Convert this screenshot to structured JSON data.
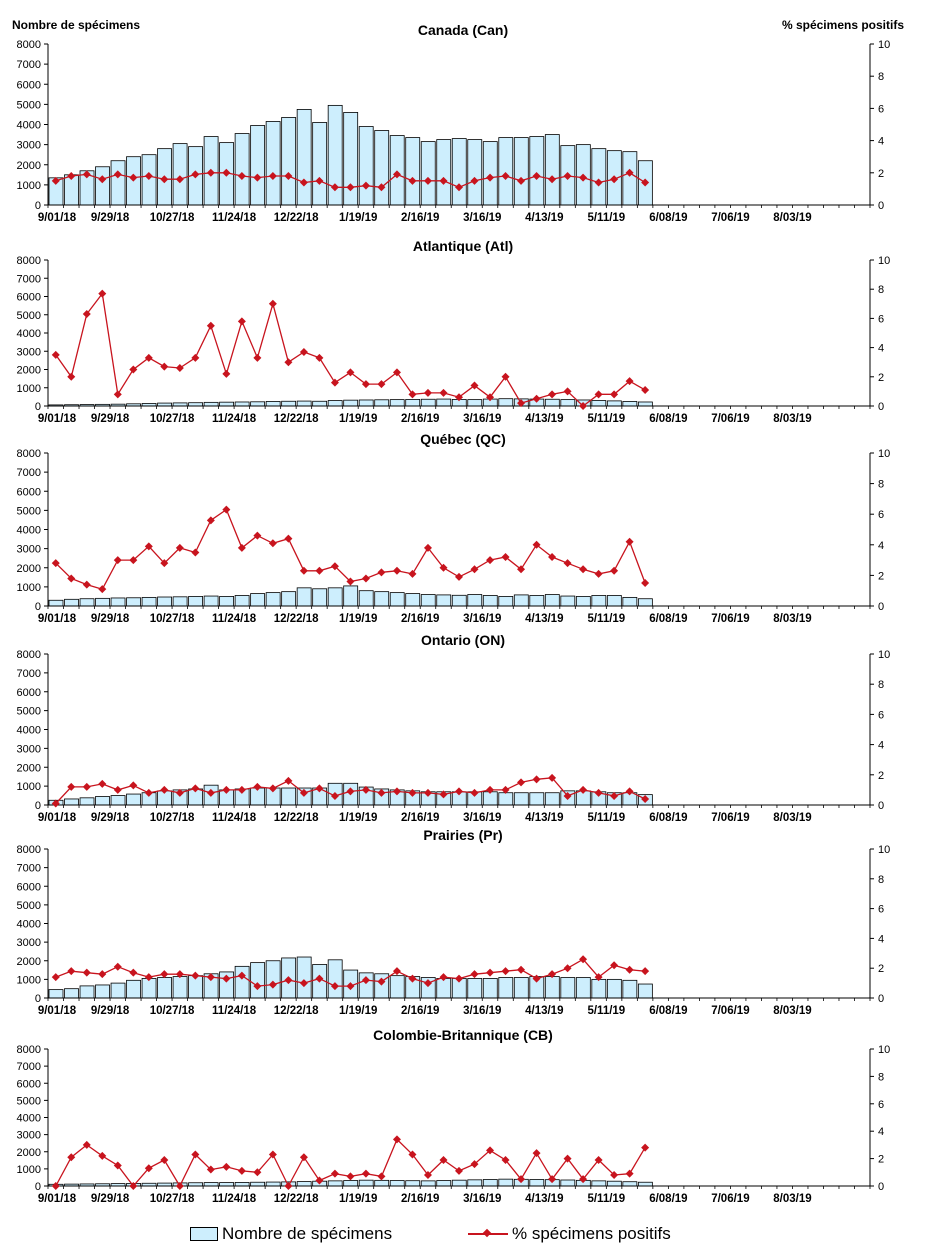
{
  "header": {
    "left_title": "Nombre de spécimens",
    "right_title": "% spécimens positifs"
  },
  "legend": {
    "bar_label": "Nombre de spécimens",
    "line_label": "% spécimens positifs"
  },
  "colors": {
    "bar_fill": "#cdeefd",
    "bar_stroke": "#000000",
    "line": "#c8141e",
    "marker": "#c8141e"
  },
  "chart_data": [
    {
      "type": "bar+line",
      "title": "Canada (Can)",
      "ylim_left": [
        0,
        8000
      ],
      "ylim_right": [
        0,
        10
      ],
      "left_ticks": [
        0,
        1000,
        2000,
        3000,
        4000,
        5000,
        6000,
        7000,
        8000
      ],
      "right_ticks": [
        0,
        2,
        4,
        6,
        8,
        10
      ],
      "x_tick_labels": [
        "9/01/18",
        "9/29/18",
        "10/27/18",
        "11/24/18",
        "12/22/18",
        "1/19/19",
        "2/16/19",
        "3/16/19",
        "4/13/19",
        "5/11/19",
        "6/08/19",
        "7/06/19",
        "8/03/19"
      ],
      "weeks_total": 53,
      "series": [
        {
          "name": "Nombre de spécimens",
          "kind": "bar",
          "values": [
            1350,
            1500,
            1700,
            1900,
            2200,
            2400,
            2500,
            2800,
            3050,
            2900,
            3400,
            3100,
            3550,
            3950,
            4150,
            4350,
            4750,
            4100,
            4950,
            4600,
            3900,
            3700,
            3450,
            3350,
            3150,
            3250,
            3300,
            3250,
            3150,
            3350,
            3350,
            3400,
            3500,
            2950,
            3000,
            2800,
            2700,
            2650,
            2200
          ]
        },
        {
          "name": "% spécimens positifs",
          "kind": "line",
          "values": [
            1.5,
            1.8,
            1.9,
            1.6,
            1.9,
            1.7,
            1.8,
            1.6,
            1.6,
            1.9,
            2.0,
            2.0,
            1.8,
            1.7,
            1.8,
            1.8,
            1.4,
            1.5,
            1.1,
            1.1,
            1.2,
            1.1,
            1.9,
            1.5,
            1.5,
            1.5,
            1.1,
            1.5,
            1.7,
            1.8,
            1.5,
            1.8,
            1.6,
            1.8,
            1.7,
            1.4,
            1.6,
            2.0,
            1.4
          ]
        }
      ]
    },
    {
      "type": "bar+line",
      "title": "Atlantique (Atl)",
      "ylim_left": [
        0,
        8000
      ],
      "ylim_right": [
        0,
        10
      ],
      "left_ticks": [
        0,
        1000,
        2000,
        3000,
        4000,
        5000,
        6000,
        7000,
        8000
      ],
      "right_ticks": [
        0,
        2,
        4,
        6,
        8,
        10
      ],
      "x_tick_labels": [
        "9/01/18",
        "9/29/18",
        "10/27/18",
        "11/24/18",
        "12/22/18",
        "1/19/19",
        "2/16/19",
        "3/16/19",
        "4/13/19",
        "5/11/19",
        "6/08/19",
        "7/06/19",
        "8/03/19"
      ],
      "weeks_total": 53,
      "series": [
        {
          "name": "Nombre de spécimens",
          "kind": "bar",
          "values": [
            60,
            70,
            80,
            90,
            100,
            120,
            140,
            160,
            170,
            180,
            200,
            210,
            220,
            230,
            250,
            260,
            270,
            260,
            300,
            320,
            330,
            340,
            350,
            360,
            370,
            380,
            360,
            350,
            380,
            400,
            390,
            380,
            370,
            350,
            330,
            300,
            280,
            250,
            220
          ]
        },
        {
          "name": "% spécimens positifs",
          "kind": "line",
          "values": [
            3.5,
            2.0,
            6.3,
            7.7,
            0.8,
            2.5,
            3.3,
            2.7,
            2.6,
            3.3,
            5.5,
            2.2,
            5.8,
            3.3,
            7.0,
            3.0,
            3.7,
            3.3,
            1.6,
            2.3,
            1.5,
            1.5,
            2.3,
            0.8,
            0.9,
            0.9,
            0.6,
            1.4,
            0.6,
            2.0,
            0.2,
            0.5,
            0.8,
            1.0,
            0.0,
            0.8,
            0.8,
            1.7,
            1.1
          ]
        }
      ]
    },
    {
      "type": "bar+line",
      "title": "Québec (QC)",
      "ylim_left": [
        0,
        8000
      ],
      "ylim_right": [
        0,
        10
      ],
      "left_ticks": [
        0,
        1000,
        2000,
        3000,
        4000,
        5000,
        6000,
        7000,
        8000
      ],
      "right_ticks": [
        0,
        2,
        4,
        6,
        8,
        10
      ],
      "x_tick_labels": [
        "9/01/18",
        "9/29/18",
        "10/27/18",
        "11/24/18",
        "12/22/18",
        "1/19/19",
        "2/16/19",
        "3/16/19",
        "4/13/19",
        "5/11/19",
        "6/08/19",
        "7/06/19",
        "8/03/19"
      ],
      "weeks_total": 53,
      "series": [
        {
          "name": "Nombre de spécimens",
          "kind": "bar",
          "values": [
            300,
            350,
            380,
            400,
            420,
            430,
            450,
            470,
            480,
            500,
            520,
            500,
            550,
            650,
            700,
            750,
            950,
            900,
            950,
            1050,
            800,
            750,
            700,
            650,
            600,
            580,
            560,
            600,
            550,
            500,
            580,
            550,
            600,
            520,
            500,
            550,
            550,
            450,
            380
          ]
        },
        {
          "name": "% spécimens positifs",
          "kind": "line",
          "values": [
            2.8,
            1.8,
            1.4,
            1.1,
            3.0,
            3.0,
            3.9,
            2.8,
            3.8,
            3.5,
            5.6,
            6.3,
            3.8,
            4.6,
            4.1,
            4.4,
            2.3,
            2.3,
            2.6,
            1.6,
            1.8,
            2.2,
            2.3,
            2.1,
            3.8,
            2.5,
            1.9,
            2.4,
            3.0,
            3.2,
            2.4,
            4.0,
            3.2,
            2.8,
            2.4,
            2.1,
            2.3,
            4.2,
            1.5
          ]
        }
      ]
    },
    {
      "type": "bar+line",
      "title": "Ontario (ON)",
      "ylim_left": [
        0,
        8000
      ],
      "ylim_right": [
        0,
        10
      ],
      "left_ticks": [
        0,
        1000,
        2000,
        3000,
        4000,
        5000,
        6000,
        7000,
        8000
      ],
      "right_ticks": [
        0,
        2,
        4,
        6,
        8,
        10
      ],
      "x_tick_labels": [
        "9/01/18",
        "9/29/18",
        "10/27/18",
        "11/24/18",
        "12/22/18",
        "1/19/19",
        "2/16/19",
        "3/16/19",
        "4/13/19",
        "5/11/19",
        "6/08/19",
        "7/06/19",
        "8/03/19"
      ],
      "weeks_total": 53,
      "series": [
        {
          "name": "Nombre de spécimens",
          "kind": "bar",
          "values": [
            250,
            320,
            380,
            450,
            500,
            580,
            650,
            750,
            800,
            850,
            1050,
            800,
            850,
            900,
            900,
            900,
            900,
            900,
            1150,
            1150,
            950,
            850,
            800,
            750,
            700,
            700,
            700,
            700,
            700,
            650,
            650,
            650,
            650,
            750,
            750,
            700,
            650,
            650,
            550
          ]
        },
        {
          "name": "% spécimens positifs",
          "kind": "line",
          "values": [
            0.1,
            1.2,
            1.2,
            1.4,
            1.0,
            1.3,
            0.8,
            1.0,
            0.8,
            1.1,
            0.8,
            1.0,
            1.0,
            1.2,
            1.1,
            1.6,
            0.8,
            1.1,
            0.6,
            0.9,
            1.0,
            0.8,
            0.9,
            0.8,
            0.8,
            0.7,
            0.9,
            0.8,
            1.0,
            1.0,
            1.5,
            1.7,
            1.8,
            0.6,
            1.0,
            0.8,
            0.6,
            0.9,
            0.4
          ]
        }
      ]
    },
    {
      "type": "bar+line",
      "title": "Prairies (Pr)",
      "ylim_left": [
        0,
        8000
      ],
      "ylim_right": [
        0,
        10
      ],
      "left_ticks": [
        0,
        1000,
        2000,
        3000,
        4000,
        5000,
        6000,
        7000,
        8000
      ],
      "right_ticks": [
        0,
        2,
        4,
        6,
        8,
        10
      ],
      "x_tick_labels": [
        "9/01/18",
        "9/29/18",
        "10/27/18",
        "11/24/18",
        "12/22/18",
        "1/19/19",
        "2/16/19",
        "3/16/19",
        "4/13/19",
        "5/11/19",
        "6/08/19",
        "7/06/19",
        "8/03/19"
      ],
      "weeks_total": 53,
      "series": [
        {
          "name": "Nombre de spécimens",
          "kind": "bar",
          "values": [
            450,
            500,
            650,
            700,
            800,
            950,
            1050,
            1100,
            1150,
            1200,
            1300,
            1400,
            1700,
            1900,
            2000,
            2150,
            2200,
            1800,
            2050,
            1500,
            1350,
            1300,
            1200,
            1150,
            1100,
            1050,
            1050,
            1050,
            1050,
            1100,
            1100,
            1150,
            1150,
            1100,
            1100,
            1000,
            1000,
            950,
            750
          ]
        },
        {
          "name": "% spécimens positifs",
          "kind": "line",
          "values": [
            1.4,
            1.8,
            1.7,
            1.6,
            2.1,
            1.7,
            1.4,
            1.6,
            1.6,
            1.5,
            1.4,
            1.3,
            1.5,
            0.8,
            0.9,
            1.2,
            1.0,
            1.3,
            0.8,
            0.8,
            1.2,
            1.1,
            1.8,
            1.3,
            1.0,
            1.4,
            1.3,
            1.6,
            1.7,
            1.8,
            1.9,
            1.3,
            1.6,
            2.0,
            2.6,
            1.4,
            2.2,
            1.9,
            1.8
          ]
        }
      ]
    },
    {
      "type": "bar+line",
      "title": "Colombie-Britannique (CB)",
      "ylim_left": [
        0,
        8000
      ],
      "ylim_right": [
        0,
        10
      ],
      "left_ticks": [
        0,
        1000,
        2000,
        3000,
        4000,
        5000,
        6000,
        7000,
        8000
      ],
      "right_ticks": [
        0,
        2,
        4,
        6,
        8,
        10
      ],
      "x_tick_labels": [
        "9/01/18",
        "9/29/18",
        "10/27/18",
        "11/24/18",
        "12/22/18",
        "1/19/19",
        "2/16/19",
        "3/16/19",
        "4/13/19",
        "5/11/19",
        "6/08/19",
        "7/06/19",
        "8/03/19"
      ],
      "weeks_total": 53,
      "series": [
        {
          "name": "Nombre de spécimens",
          "kind": "bar",
          "values": [
            100,
            110,
            120,
            130,
            140,
            150,
            160,
            170,
            180,
            190,
            200,
            200,
            210,
            220,
            230,
            240,
            260,
            280,
            300,
            320,
            340,
            330,
            320,
            310,
            300,
            320,
            340,
            360,
            380,
            400,
            390,
            380,
            370,
            350,
            330,
            300,
            280,
            250,
            220
          ]
        },
        {
          "name": "% spécimens positifs",
          "kind": "line",
          "values": [
            0.0,
            2.1,
            3.0,
            2.2,
            1.5,
            0.0,
            1.3,
            1.9,
            0.0,
            2.3,
            1.2,
            1.4,
            1.1,
            1.0,
            2.3,
            0.0,
            2.1,
            0.4,
            0.9,
            0.7,
            0.9,
            0.7,
            3.4,
            2.3,
            0.8,
            1.9,
            1.1,
            1.6,
            2.6,
            1.9,
            0.5,
            2.4,
            0.5,
            2.0,
            0.5,
            1.9,
            0.8,
            0.9,
            2.8
          ]
        }
      ]
    }
  ]
}
